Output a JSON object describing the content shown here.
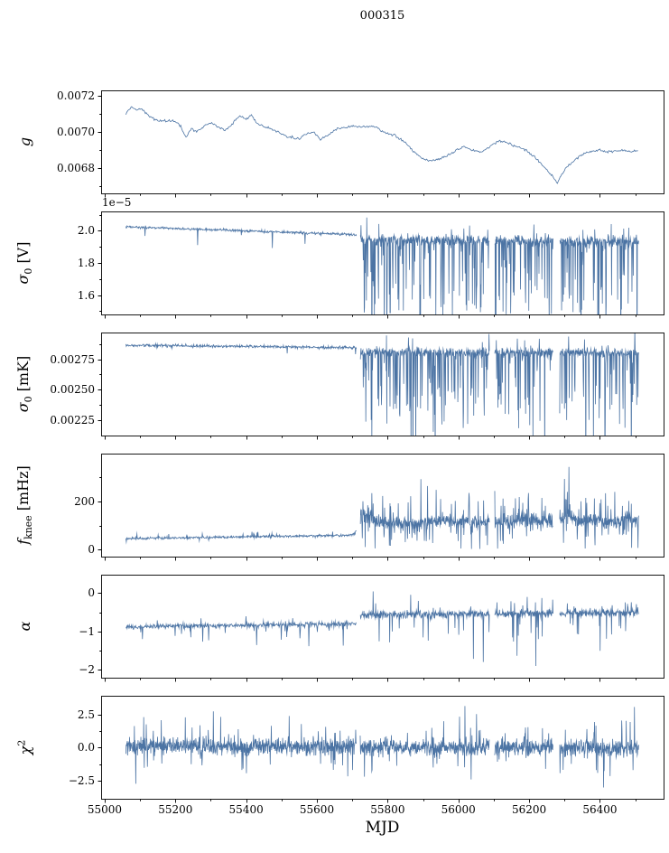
{
  "figure": {
    "title": "000315"
  },
  "chart_data": {
    "type": "line",
    "title": "000315",
    "xlabel": "MJD",
    "line_color": "#4c74a4",
    "axis_color": "#000000",
    "seed": 20161,
    "xlim": [
      54990,
      56580
    ],
    "x_ticks": {
      "values": [
        55000,
        55200,
        55400,
        55600,
        55800,
        56000,
        56200,
        56400
      ],
      "labels": [
        "55000",
        "55200",
        "55400",
        "55600",
        "55800",
        "56000",
        "56200",
        "56400"
      ]
    },
    "x_minor": [
      55100,
      55300,
      55500,
      55700,
      55900,
      56100,
      56300,
      56500
    ],
    "gaps": [
      [
        55712,
        55722
      ],
      [
        56088,
        56102
      ],
      [
        56268,
        56286
      ]
    ],
    "panels": [
      {
        "name": "g",
        "ylabel_parts": [
          {
            "t": "g",
            "i": true
          }
        ],
        "ylim": [
          0.00666,
          0.00723
        ],
        "yticks": {
          "values": [
            0.0068,
            0.007,
            0.0072
          ],
          "labels": [
            "0.0068",
            "0.0070",
            "0.0072"
          ]
        },
        "yminor": [
          0.0067,
          0.0069,
          0.0071
        ],
        "series": {
          "jitter": 1.2e-05,
          "step": 2.5,
          "baseline": [
            [
              55060,
              0.0071
            ],
            [
              55075,
              0.00714
            ],
            [
              55090,
              0.00712
            ],
            [
              55105,
              0.00713
            ],
            [
              55120,
              0.0071
            ],
            [
              55140,
              0.00707
            ],
            [
              55170,
              0.00706
            ],
            [
              55200,
              0.00706
            ],
            [
              55215,
              0.00703
            ],
            [
              55230,
              0.00697
            ],
            [
              55245,
              0.00702
            ],
            [
              55260,
              0.007
            ],
            [
              55280,
              0.00703
            ],
            [
              55300,
              0.00705
            ],
            [
              55320,
              0.00703
            ],
            [
              55340,
              0.00701
            ],
            [
              55360,
              0.00704
            ],
            [
              55380,
              0.00709
            ],
            [
              55400,
              0.00707
            ],
            [
              55415,
              0.00709
            ],
            [
              55430,
              0.00705
            ],
            [
              55450,
              0.00703
            ],
            [
              55470,
              0.00702
            ],
            [
              55490,
              0.007
            ],
            [
              55510,
              0.00698
            ],
            [
              55530,
              0.00697
            ],
            [
              55550,
              0.00696
            ],
            [
              55570,
              0.00699
            ],
            [
              55590,
              0.007
            ],
            [
              55610,
              0.00696
            ],
            [
              55630,
              0.00698
            ],
            [
              55650,
              0.00701
            ],
            [
              55670,
              0.00702
            ],
            [
              55700,
              0.00703
            ],
            [
              55730,
              0.00703
            ],
            [
              55760,
              0.00703
            ],
            [
              55790,
              0.007
            ],
            [
              55820,
              0.00698
            ],
            [
              55850,
              0.00694
            ],
            [
              55880,
              0.00688
            ],
            [
              55900,
              0.00685
            ],
            [
              55920,
              0.00684
            ],
            [
              55945,
              0.00685
            ],
            [
              55970,
              0.00687
            ],
            [
              55995,
              0.0069
            ],
            [
              56015,
              0.00692
            ],
            [
              56040,
              0.0069
            ],
            [
              56065,
              0.00689
            ],
            [
              56090,
              0.00692
            ],
            [
              56115,
              0.00695
            ],
            [
              56140,
              0.00694
            ],
            [
              56165,
              0.00692
            ],
            [
              56190,
              0.0069
            ],
            [
              56215,
              0.00686
            ],
            [
              56240,
              0.00681
            ],
            [
              56260,
              0.00677
            ],
            [
              56280,
              0.00672
            ],
            [
              56300,
              0.00679
            ],
            [
              56320,
              0.00683
            ],
            [
              56345,
              0.00687
            ],
            [
              56370,
              0.00689
            ],
            [
              56400,
              0.0069
            ],
            [
              56430,
              0.00689
            ],
            [
              56460,
              0.0069
            ],
            [
              56490,
              0.00689
            ],
            [
              56510,
              0.0069
            ]
          ]
        }
      },
      {
        "name": "sigma0_V",
        "ylabel_parts": [
          {
            "t": "σ",
            "i": true
          },
          {
            "t": "0",
            "sub": true
          },
          {
            "t": " [V]"
          }
        ],
        "offset_text": "1e−5",
        "ylim": [
          1.48,
          2.12
        ],
        "yticks": {
          "values": [
            1.6,
            1.8,
            2.0
          ],
          "labels": [
            "1.6",
            "1.8",
            "2.0"
          ]
        },
        "yminor": [
          1.5,
          1.7,
          1.9,
          2.1
        ],
        "series": {
          "segments": [
            {
              "x0": 55060,
              "x1": 55718,
              "mean0": 2.025,
              "mean1": 1.975,
              "noise": 0.013,
              "down_prob": 0.012,
              "down_max": 0.06,
              "up_prob": 0.004,
              "up_max": 0.03,
              "step": 1.2
            },
            {
              "x0": 55722,
              "x1": 56510,
              "mean0": 1.945,
              "mean1": 1.93,
              "noise": 0.055,
              "down_prob": 0.2,
              "down_max": 0.5,
              "up_prob": 0.04,
              "up_max": 0.1,
              "step": 0.9
            }
          ]
        }
      },
      {
        "name": "sigma0_mK",
        "ylabel_parts": [
          {
            "t": "σ",
            "i": true
          },
          {
            "t": "0",
            "sub": true
          },
          {
            "t": " [mK]"
          }
        ],
        "ylim": [
          0.00212,
          0.00297
        ],
        "yticks": {
          "values": [
            0.00225,
            0.0025,
            0.00275
          ],
          "labels": [
            "0.00225",
            "0.00250",
            "0.00275"
          ]
        },
        "yminor": [
          0.002375,
          0.002625,
          0.002875
        ],
        "series": {
          "segments": [
            {
              "x0": 55060,
              "x1": 55718,
              "mean0": 0.002865,
              "mean1": 0.002845,
              "noise": 2e-05,
              "down_prob": 0.012,
              "down_max": 8e-05,
              "up_prob": 0.004,
              "up_max": 4e-05,
              "step": 1.2
            },
            {
              "x0": 55722,
              "x1": 56510,
              "mean0": 0.00281,
              "mean1": 0.0028,
              "noise": 6e-05,
              "down_prob": 0.2,
              "down_max": 0.00062,
              "up_prob": 0.04,
              "up_max": 0.00012,
              "step": 0.9
            }
          ]
        }
      },
      {
        "name": "f_knee",
        "ylabel_parts": [
          {
            "t": "f",
            "i": true
          },
          {
            "t": "knee",
            "sub": true
          },
          {
            "t": " [mHz]"
          }
        ],
        "ylim": [
          -28,
          395
        ],
        "yticks": {
          "values": [
            0,
            200
          ],
          "labels": [
            "0",
            "200"
          ]
        },
        "yminor": [
          100,
          300
        ],
        "series": {
          "ymin_clamp": 3,
          "ymin_clamp_jit": 8,
          "bursts": [
            {
              "x": 55742,
              "w": 26,
              "amp": 150
            },
            {
              "x": 55960,
              "w": 16,
              "amp": 55
            },
            {
              "x": 56190,
              "w": 20,
              "amp": 75
            },
            {
              "x": 56308,
              "w": 16,
              "amp": 185
            },
            {
              "x": 56478,
              "w": 14,
              "amp": 60
            }
          ],
          "segments": [
            {
              "x0": 55060,
              "x1": 55718,
              "mean0": 46,
              "mean1": 60,
              "noise": 9,
              "down_prob": 0.01,
              "down_max": 18,
              "up_prob": 0.04,
              "up_max": 24,
              "step": 1.2
            },
            {
              "x0": 55722,
              "x1": 56510,
              "mean0": 112,
              "mean1": 116,
              "noise": 44,
              "down_prob": 0.12,
              "down_max": 88,
              "up_prob": 0.1,
              "up_max": 110,
              "step": 0.9
            }
          ]
        }
      },
      {
        "name": "alpha",
        "ylabel_parts": [
          {
            "t": "α",
            "i": true
          }
        ],
        "ylim": [
          -2.2,
          0.48
        ],
        "yticks": {
          "values": [
            -2,
            -1,
            0
          ],
          "labels": [
            "−2",
            "−1",
            "0"
          ]
        },
        "yminor": [
          -1.5,
          -0.5
        ],
        "series": {
          "segments": [
            {
              "x0": 55060,
              "x1": 55718,
              "mean0": -0.87,
              "mean1": -0.8,
              "noise": 0.11,
              "down_prob": 0.04,
              "down_max": 0.55,
              "up_prob": 0.01,
              "up_max": 0.2,
              "step": 1.2
            },
            {
              "x0": 55722,
              "x1": 56510,
              "mean0": -0.57,
              "mean1": -0.5,
              "noise": 0.16,
              "down_prob": 0.05,
              "down_max": 0.75,
              "up_prob": 0.05,
              "up_max": 0.42,
              "step": 0.9
            }
          ]
        }
      },
      {
        "name": "chi2",
        "ylabel_parts": [
          {
            "t": "χ",
            "i": true
          },
          {
            "t": "2",
            "sup": true
          }
        ],
        "ylim": [
          -3.9,
          3.95
        ],
        "yticks": {
          "values": [
            -2.5,
            0,
            2.5
          ],
          "labels": [
            "−2.5",
            "0.0",
            "2.5"
          ]
        },
        "yminor": [
          -1.25,
          1.25
        ],
        "series": {
          "segments": [
            {
              "x0": 55060,
              "x1": 56510,
              "mean0": 0.15,
              "mean1": -0.05,
              "noise": 1.05,
              "down_prob": 0.06,
              "down_max": 1.8,
              "up_prob": 0.06,
              "up_max": 1.8,
              "step": 0.8
            }
          ]
        }
      }
    ]
  }
}
